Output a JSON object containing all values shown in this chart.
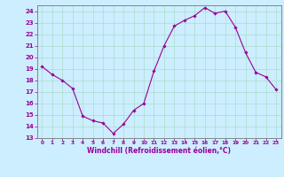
{
  "x": [
    0,
    1,
    2,
    3,
    4,
    5,
    6,
    7,
    8,
    9,
    10,
    11,
    12,
    13,
    14,
    15,
    16,
    17,
    18,
    19,
    20,
    21,
    22,
    23
  ],
  "y": [
    19.2,
    18.5,
    18.0,
    17.3,
    14.9,
    14.5,
    14.3,
    13.4,
    14.2,
    15.4,
    16.0,
    18.8,
    21.0,
    22.7,
    23.2,
    23.6,
    24.3,
    23.8,
    24.0,
    22.6,
    20.4,
    18.7,
    18.3,
    17.2
  ],
  "xlim": [
    -0.5,
    23.5
  ],
  "ylim": [
    13,
    24.5
  ],
  "yticks": [
    13,
    14,
    15,
    16,
    17,
    18,
    19,
    20,
    21,
    22,
    23,
    24
  ],
  "xticks": [
    0,
    1,
    2,
    3,
    4,
    5,
    6,
    7,
    8,
    9,
    10,
    11,
    12,
    13,
    14,
    15,
    16,
    17,
    18,
    19,
    20,
    21,
    22,
    23
  ],
  "xlabel": "Windchill (Refroidissement éolien,°C)",
  "line_color": "#990099",
  "marker_color": "#990099",
  "bg_color": "#cceeff",
  "grid_color": "#aaddcc",
  "spine_color": "#777777",
  "tick_color": "#990099",
  "label_color": "#990099"
}
